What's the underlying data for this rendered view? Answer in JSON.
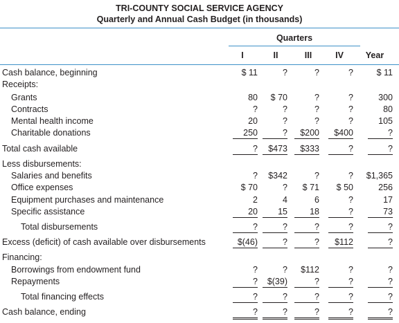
{
  "header": {
    "title": "TRI-COUNTY SOCIAL SERVICE AGENCY",
    "subtitle": "Quarterly and Annual Cash Budget (in thousands)",
    "group_label": "Quarters"
  },
  "table": {
    "columns": [
      "I",
      "II",
      "III",
      "IV",
      "Year"
    ],
    "rows": [
      {
        "label": "Cash balance, beginning",
        "cells": [
          "$ 11",
          "?",
          "?",
          "?",
          "$ 11"
        ]
      },
      {
        "label": "Receipts:"
      },
      {
        "label": "Grants",
        "cells": [
          "80",
          "$ 70",
          "?",
          "?",
          "300"
        ]
      },
      {
        "label": "Contracts",
        "cells": [
          "?",
          "?",
          "?",
          "?",
          "80"
        ]
      },
      {
        "label": "Mental health income",
        "cells": [
          "20",
          "?",
          "?",
          "?",
          "105"
        ]
      },
      {
        "label": "Charitable donations",
        "cells": [
          "250",
          "?",
          "$200",
          "$400",
          "?"
        ]
      },
      {
        "label": "Total cash available",
        "cells": [
          "?",
          "$473",
          "$333",
          "?",
          "?"
        ]
      },
      {
        "label": "Less disbursements:"
      },
      {
        "label": "Salaries and benefits",
        "cells": [
          "?",
          "$342",
          "?",
          "?",
          "$1,365"
        ]
      },
      {
        "label": "Office expenses",
        "cells": [
          "$ 70",
          "?",
          "$ 71",
          "$ 50",
          "256"
        ]
      },
      {
        "label": "Equipment purchases and maintenance",
        "cells": [
          "2",
          "4",
          "6",
          "?",
          "17"
        ]
      },
      {
        "label": "Specific assistance",
        "cells": [
          "20",
          "15",
          "18",
          "?",
          "73"
        ]
      },
      {
        "label": "Total disbursements",
        "cells": [
          "?",
          "?",
          "?",
          "?",
          "?"
        ]
      },
      {
        "label": "Excess (deficit) of cash available over disbursements",
        "cells": [
          "$(46)",
          "?",
          "?",
          "$112",
          "?"
        ]
      },
      {
        "label": "Financing:"
      },
      {
        "label": "Borrowings from endowment fund",
        "cells": [
          "?",
          "?",
          "$112",
          "?",
          "?"
        ]
      },
      {
        "label": "Repayments",
        "cells": [
          "?",
          "$(39)",
          "?",
          "?",
          "?"
        ]
      },
      {
        "label": "Total financing effects",
        "cells": [
          "?",
          "?",
          "?",
          "?",
          "?"
        ]
      },
      {
        "label": "Cash balance, ending",
        "cells": [
          "?",
          "?",
          "?",
          "?",
          "?"
        ]
      }
    ]
  }
}
